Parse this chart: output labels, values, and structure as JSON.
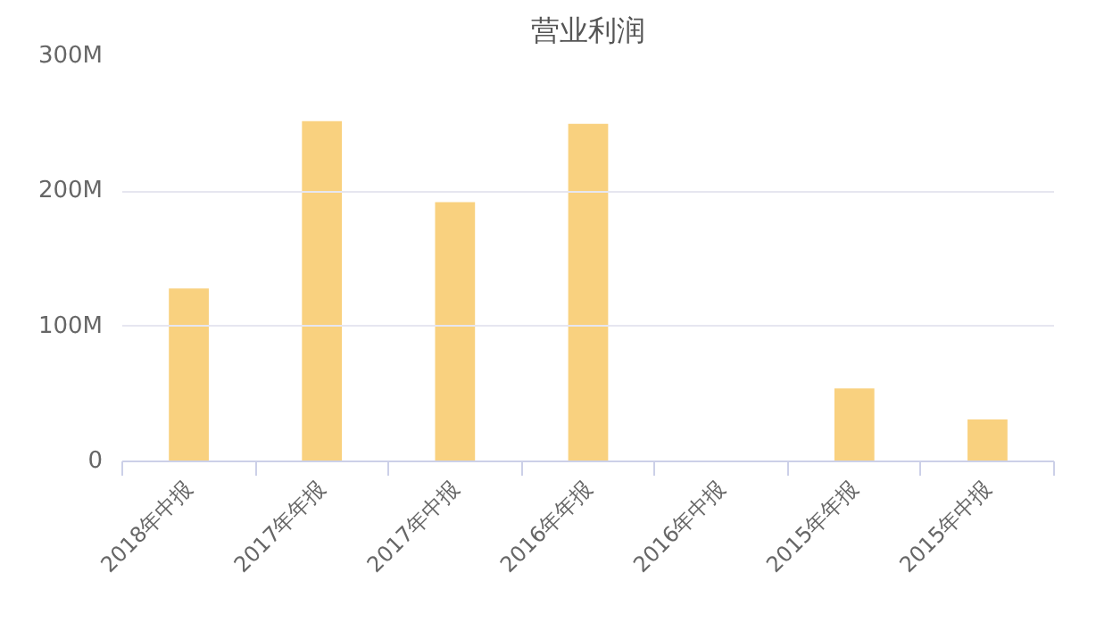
{
  "chart_data": {
    "type": "bar",
    "title": "营业利润",
    "categories": [
      "2018年中报",
      "2017年年报",
      "2017年中报",
      "2016年年报",
      "2016年中报",
      "2015年年报",
      "2015年中报"
    ],
    "series": [
      {
        "color": "#f9d17f",
        "values": [
          128000000,
          252000000,
          192000000,
          250000000,
          null,
          54000000,
          31000000
        ]
      }
    ],
    "ylim": [
      0,
      300000000
    ],
    "yticks": [
      {
        "value": 0,
        "label": "0"
      },
      {
        "value": 100000000,
        "label": "100M"
      },
      {
        "value": 200000000,
        "label": "200M"
      },
      {
        "value": 300000000,
        "label": "300M"
      }
    ],
    "grid": "y"
  }
}
